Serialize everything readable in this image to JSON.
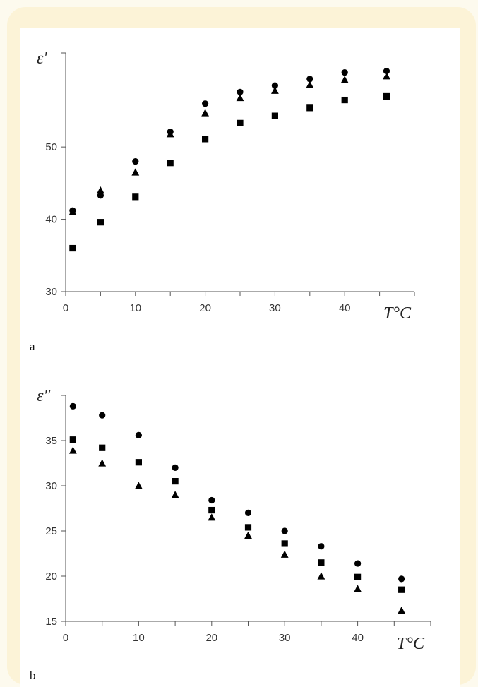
{
  "chart_data": [
    {
      "type": "scatter",
      "panel_label": "a",
      "title": "",
      "ylabel": "ε′",
      "xlabel": "T°C",
      "xlim": [
        0,
        50
      ],
      "ylim": [
        30,
        63
      ],
      "x_ticks": [
        0,
        10,
        20,
        30,
        40
      ],
      "y_ticks": [
        30,
        40,
        50
      ],
      "grid": false,
      "series": [
        {
          "marker": "circle",
          "x": [
            1,
            5,
            10,
            15,
            20,
            25,
            30,
            35,
            40,
            46
          ],
          "y": [
            41.2,
            43.3,
            48.0,
            52.1,
            56.0,
            57.6,
            58.5,
            59.4,
            60.3,
            60.5
          ]
        },
        {
          "marker": "triangle",
          "x": [
            1,
            5,
            10,
            15,
            20,
            25,
            30,
            35,
            40,
            46
          ],
          "y": [
            41.0,
            44.0,
            46.5,
            51.8,
            54.7,
            56.8,
            57.8,
            58.6,
            59.3,
            59.8
          ]
        },
        {
          "marker": "square",
          "x": [
            1,
            5,
            10,
            15,
            20,
            25,
            30,
            35,
            40,
            46
          ],
          "y": [
            36.0,
            39.6,
            43.1,
            47.8,
            51.1,
            53.3,
            54.3,
            55.4,
            56.5,
            57.0
          ]
        }
      ]
    },
    {
      "type": "scatter",
      "panel_label": "b",
      "title": "",
      "ylabel": "ε″",
      "xlabel": "T°C",
      "xlim": [
        0,
        50
      ],
      "ylim": [
        15,
        40
      ],
      "x_ticks": [
        0,
        10,
        20,
        30,
        40
      ],
      "y_ticks": [
        15,
        20,
        25,
        30,
        35
      ],
      "grid": false,
      "series": [
        {
          "marker": "circle",
          "x": [
            1,
            5,
            10,
            15,
            20,
            25,
            30,
            35,
            40,
            46
          ],
          "y": [
            38.8,
            37.8,
            35.6,
            32.0,
            28.4,
            27.0,
            25.0,
            23.3,
            21.4,
            19.7
          ]
        },
        {
          "marker": "square",
          "x": [
            1,
            5,
            10,
            15,
            20,
            25,
            30,
            35,
            40,
            46
          ],
          "y": [
            35.1,
            34.2,
            32.6,
            30.5,
            27.3,
            25.4,
            23.6,
            21.5,
            19.9,
            18.5
          ]
        },
        {
          "marker": "triangle",
          "x": [
            1,
            5,
            10,
            15,
            20,
            25,
            30,
            35,
            40,
            46
          ],
          "y": [
            33.9,
            32.5,
            30.0,
            29.0,
            26.5,
            24.5,
            22.4,
            20.0,
            18.6,
            16.2
          ]
        }
      ]
    }
  ]
}
